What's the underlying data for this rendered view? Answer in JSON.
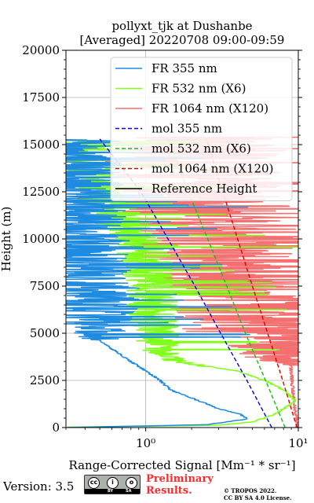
{
  "chart_data": {
    "type": "line",
    "title_line1": "pollyxt_tjk at Dushanbe",
    "title_line2": "[Averaged] 20220708 09:00-09:59",
    "xlabel": "Range-Corrected Signal [Mm⁻¹ * sr⁻¹]",
    "ylabel": "Height (m)",
    "x_scale": "log",
    "xlim": [
      0.3,
      10
    ],
    "ylim": [
      0,
      20000
    ],
    "x_ticks": [
      1,
      10
    ],
    "x_tick_labels": [
      "10⁰",
      "10¹"
    ],
    "y_ticks": [
      0,
      2500,
      5000,
      7500,
      10000,
      12500,
      15000,
      17500,
      20000
    ],
    "y_tick_labels": [
      "0",
      "2500",
      "5000",
      "7500",
      "10000",
      "12500",
      "15000",
      "17500",
      "20000"
    ],
    "grid": true,
    "legend_position": "top-right",
    "legend": [
      {
        "label": "FR 355 nm",
        "color": "#1f8be0",
        "style": "solid"
      },
      {
        "label": "FR 532 nm (X6)",
        "color": "#80ff1a",
        "style": "solid"
      },
      {
        "label": "FR 1064 nm (X120)",
        "color": "#f47070",
        "style": "solid"
      },
      {
        "label": "mol 355 nm",
        "color": "#0000e0",
        "style": "dashed"
      },
      {
        "label": "mol 532 nm (X6)",
        "color": "#10c010",
        "style": "dashed"
      },
      {
        "label": "mol 1064 nm (X120)",
        "color": "#e00000",
        "style": "dashed"
      },
      {
        "label": "Reference Height",
        "color": "#000000",
        "style": "solid"
      }
    ],
    "series": [
      {
        "name": "FR 355 nm",
        "color": "#1f8be0",
        "kind": "signal",
        "noise_from": 4600,
        "noise_amp": 0.35,
        "points": [
          [
            0.3,
            0
          ],
          [
            2.5,
            150
          ],
          [
            4.6,
            450
          ],
          [
            4.2,
            700
          ],
          [
            3.0,
            1000
          ],
          [
            2.1,
            1500
          ],
          [
            1.45,
            2000
          ],
          [
            1.2,
            2600
          ],
          [
            1.0,
            3000
          ],
          [
            0.8,
            3500
          ],
          [
            0.62,
            4100
          ],
          [
            0.5,
            4600
          ],
          [
            0.45,
            6000
          ],
          [
            0.42,
            7500
          ],
          [
            0.38,
            9000
          ],
          [
            0.35,
            10500
          ],
          [
            0.33,
            12000
          ],
          [
            0.32,
            13500
          ],
          [
            0.31,
            15000
          ],
          [
            0.3,
            15300
          ]
        ]
      },
      {
        "name": "FR 532 nm (X6)",
        "color": "#80ff1a",
        "kind": "signal",
        "noise_from": 3200,
        "noise_amp": 0.18,
        "points": [
          [
            0.3,
            20
          ],
          [
            3.0,
            120
          ],
          [
            5.0,
            300
          ],
          [
            7.0,
            700
          ],
          [
            9.6,
            1400
          ],
          [
            8.0,
            2000
          ],
          [
            6.0,
            2500
          ],
          [
            4.0,
            3000
          ],
          [
            2.3,
            3300
          ],
          [
            1.5,
            3600
          ],
          [
            1.25,
            4000
          ],
          [
            1.15,
            5000
          ],
          [
            1.1,
            6500
          ],
          [
            1.05,
            8000
          ],
          [
            0.95,
            9500
          ],
          [
            0.75,
            10500
          ],
          [
            0.6,
            11500
          ],
          [
            0.5,
            12500
          ],
          [
            0.42,
            13500
          ],
          [
            0.35,
            15200
          ]
        ]
      },
      {
        "name": "FR 1064 nm (X120)",
        "color": "#f47070",
        "kind": "signal",
        "noise_from": 3300,
        "noise_amp": 0.6,
        "points": [
          [
            9.8,
            0
          ],
          [
            9.5,
            1000
          ],
          [
            9.2,
            2000
          ],
          [
            9.0,
            3000
          ],
          [
            8.5,
            4000
          ],
          [
            7.0,
            5000
          ],
          [
            5.5,
            6000
          ],
          [
            4.5,
            7000
          ],
          [
            3.8,
            8000
          ],
          [
            3.6,
            9000
          ],
          [
            3.3,
            10000
          ],
          [
            2.8,
            11000
          ],
          [
            2.3,
            12000
          ],
          [
            2.0,
            13000
          ],
          [
            1.9,
            14000
          ],
          [
            1.9,
            15000
          ],
          [
            1.9,
            15400
          ]
        ]
      },
      {
        "name": "mol 355 nm",
        "color": "#0000e0",
        "kind": "molecular",
        "points": [
          [
            6.7,
            0
          ],
          [
            4.6,
            2500
          ],
          [
            3.1,
            5000
          ],
          [
            2.1,
            7500
          ],
          [
            1.4,
            10000
          ],
          [
            0.93,
            12500
          ],
          [
            0.5,
            15300
          ]
        ]
      },
      {
        "name": "mol 532 nm (X6)",
        "color": "#10c010",
        "kind": "molecular",
        "points": [
          [
            8.2,
            0
          ],
          [
            6.1,
            2500
          ],
          [
            4.5,
            5000
          ],
          [
            3.4,
            7500
          ],
          [
            2.55,
            10000
          ],
          [
            1.9,
            12500
          ],
          [
            1.4,
            15300
          ]
        ]
      },
      {
        "name": "mol 1064 nm (X120)",
        "color": "#e00000",
        "kind": "molecular",
        "points": [
          [
            9.8,
            0
          ],
          [
            7.9,
            2500
          ],
          [
            6.3,
            5000
          ],
          [
            5.0,
            7500
          ],
          [
            4.0,
            10000
          ],
          [
            3.2,
            12500
          ],
          [
            2.5,
            15300
          ]
        ]
      }
    ]
  },
  "footer": {
    "version": "Version: 3.5",
    "cc_left": "cc",
    "cc_mid": "i",
    "cc_right": "o",
    "cc_by": "BY",
    "cc_sa": "SA",
    "preliminary_line1": "Preliminary",
    "preliminary_line2": "Results.",
    "tropos_line1": "© TROPOS 2022.",
    "tropos_line2": "CC BY SA 4.0 License."
  }
}
